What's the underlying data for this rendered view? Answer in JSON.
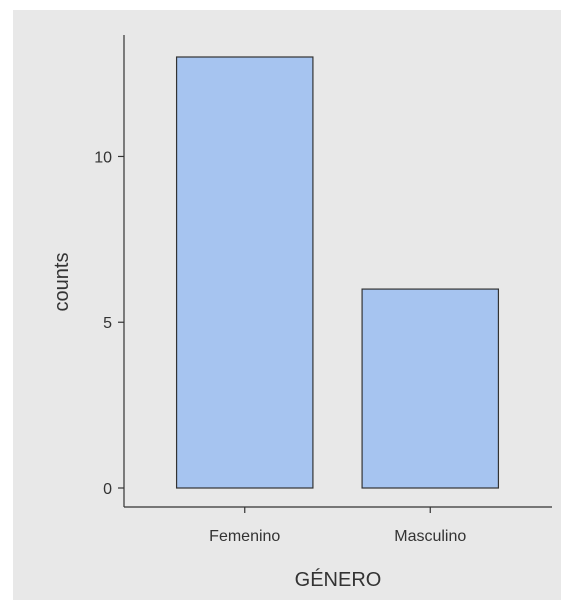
{
  "chart_data": {
    "type": "bar",
    "categories": [
      "Femenino",
      "Masculino"
    ],
    "values": [
      13,
      6
    ],
    "title": "",
    "xlabel": "GÉNERO",
    "ylabel": "counts",
    "ylim": [
      0,
      13
    ],
    "y_ticks": [
      0,
      5,
      10
    ],
    "grid": false,
    "colors": {
      "background": "#e8e8e8",
      "bar_fill": "#a6c4f0",
      "bar_stroke": "#333333",
      "axis": "#333333",
      "text": "#333333"
    }
  }
}
